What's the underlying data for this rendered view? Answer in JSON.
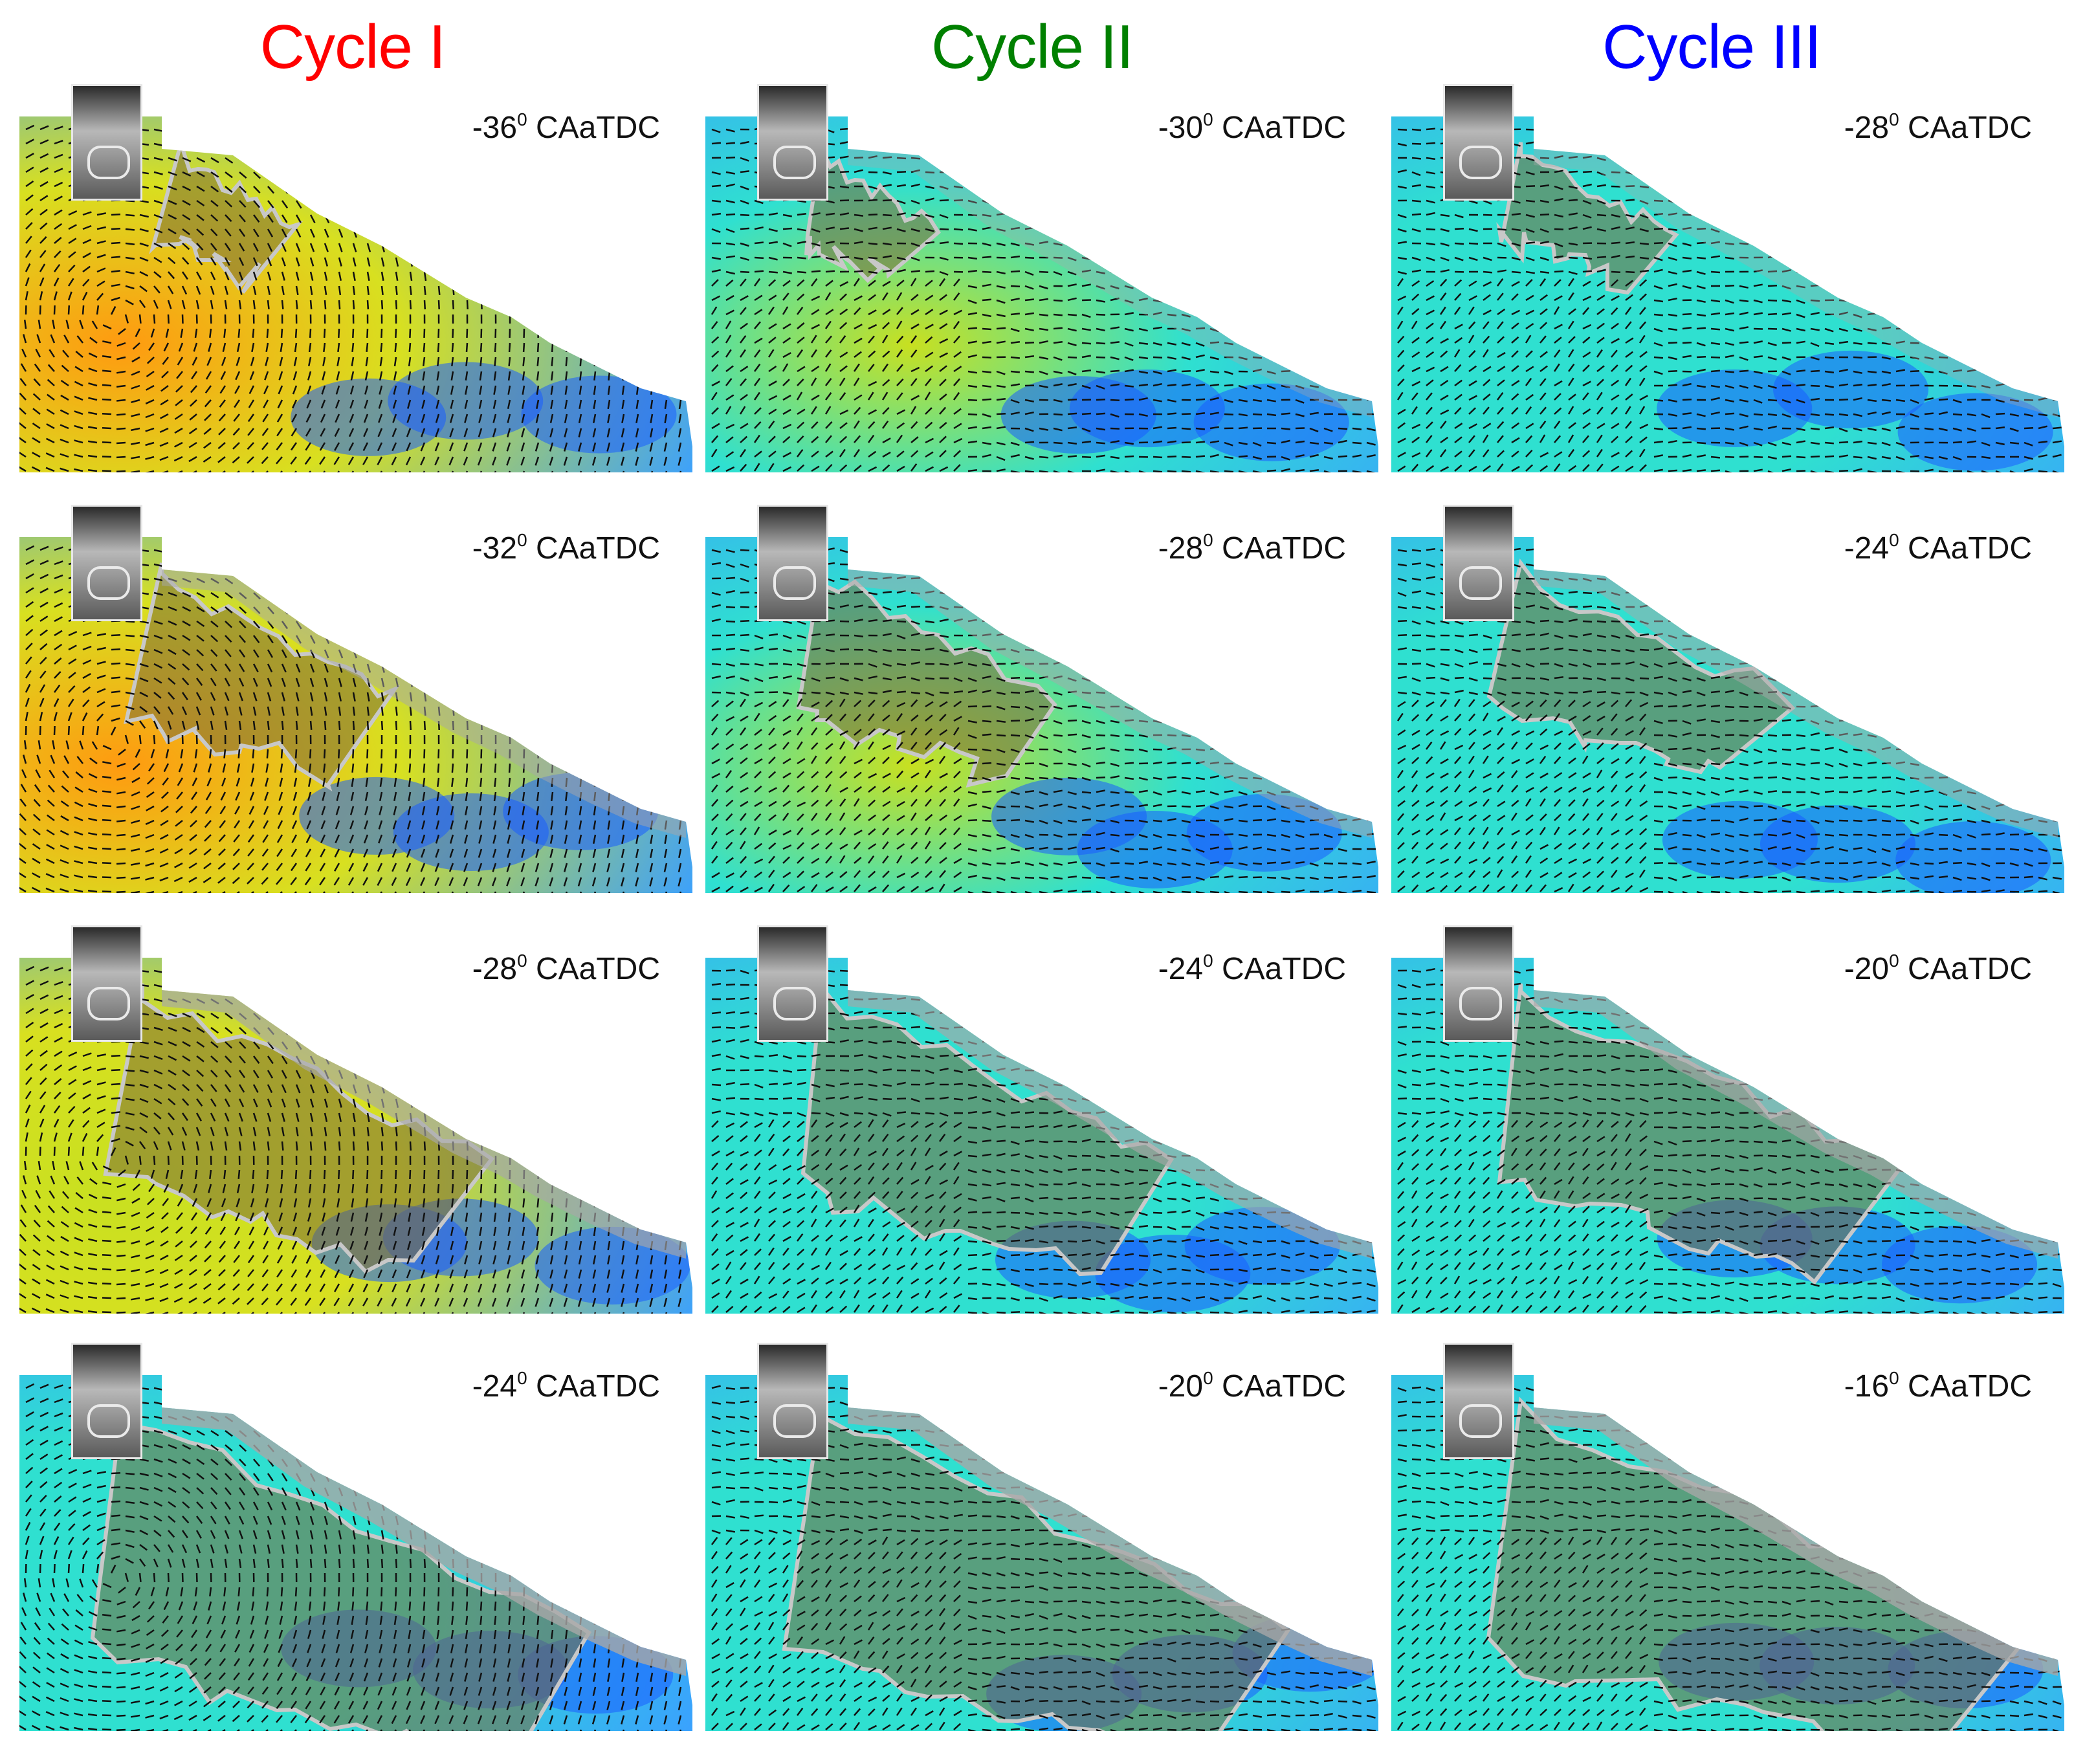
{
  "columns": [
    {
      "title": "Cycle I",
      "color": "#ff0000"
    },
    {
      "title": "Cycle II",
      "color": "#008000"
    },
    {
      "title": "Cycle III",
      "color": "#0000ff"
    }
  ],
  "panels": [
    [
      {
        "angle": "-36",
        "unit": "0",
        "suffix": " CAaTDC"
      },
      {
        "angle": "-32",
        "unit": "0",
        "suffix": " CAaTDC"
      },
      {
        "angle": "-28",
        "unit": "0",
        "suffix": " CAaTDC"
      },
      {
        "angle": "-24",
        "unit": "0",
        "suffix": " CAaTDC"
      }
    ],
    [
      {
        "angle": "-30",
        "unit": "0",
        "suffix": " CAaTDC"
      },
      {
        "angle": "-28",
        "unit": "0",
        "suffix": " CAaTDC"
      },
      {
        "angle": "-24",
        "unit": "0",
        "suffix": " CAaTDC"
      },
      {
        "angle": "-20",
        "unit": "0",
        "suffix": " CAaTDC"
      }
    ],
    [
      {
        "angle": "-28",
        "unit": "0",
        "suffix": " CAaTDC"
      },
      {
        "angle": "-24",
        "unit": "0",
        "suffix": " CAaTDC"
      },
      {
        "angle": "-20",
        "unit": "0",
        "suffix": " CAaTDC"
      },
      {
        "angle": "-16",
        "unit": "0",
        "suffix": " CAaTDC"
      }
    ]
  ],
  "colormap": {
    "low": "#1a5cff",
    "mid": "#2fe0d0",
    "high": "#ff9a10"
  },
  "flame_color": "#7a6a3a"
}
